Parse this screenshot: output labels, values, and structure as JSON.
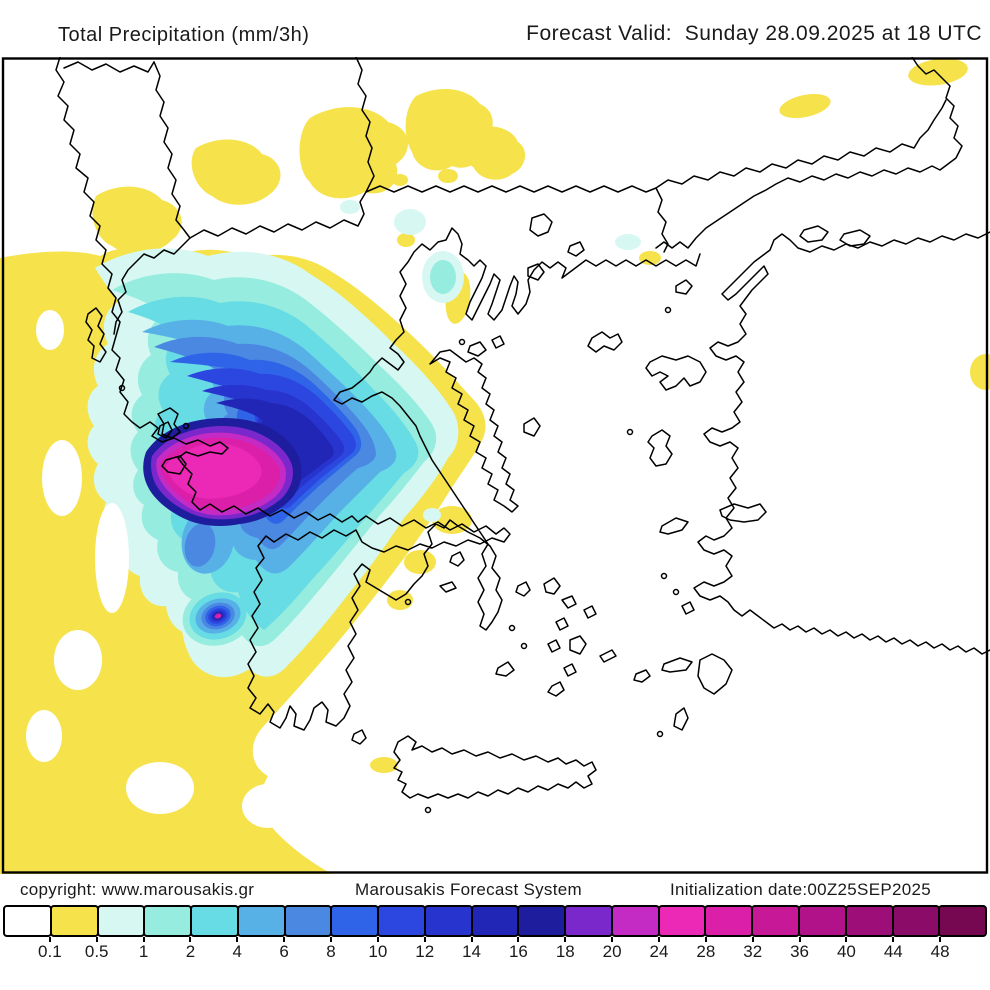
{
  "header": {
    "title": "Total Precipitation (mm/3h)",
    "forecast": "Forecast Valid:  Sunday 28.09.2025 at 18 UTC"
  },
  "footer": {
    "copyright": "copyright: www.marousakis.gr",
    "system": "Marousakis Forecast System",
    "init": "Initialization date:00Z25SEP2025"
  },
  "colorbar": {
    "boundary_labels": [
      "0.1",
      "0.5",
      "1",
      "2",
      "4",
      "6",
      "8",
      "10",
      "12",
      "14",
      "16",
      "18",
      "20",
      "24",
      "28",
      "32",
      "36",
      "40",
      "44",
      "48"
    ],
    "cell_colors": [
      "#ffffff",
      "#f6e24b",
      "#d7f8f2",
      "#96ecdf",
      "#68dce4",
      "#57b1e7",
      "#4a88e2",
      "#2f64e8",
      "#2c47df",
      "#2735ce",
      "#2226b7",
      "#1d1d9e",
      "#7a28cb",
      "#c32bc4",
      "#ec29b6",
      "#db1fa9",
      "#c71898",
      "#b21289",
      "#9d0e79",
      "#8a0b68",
      "#750850"
    ]
  },
  "map": {
    "units": "mm/3h"
  }
}
